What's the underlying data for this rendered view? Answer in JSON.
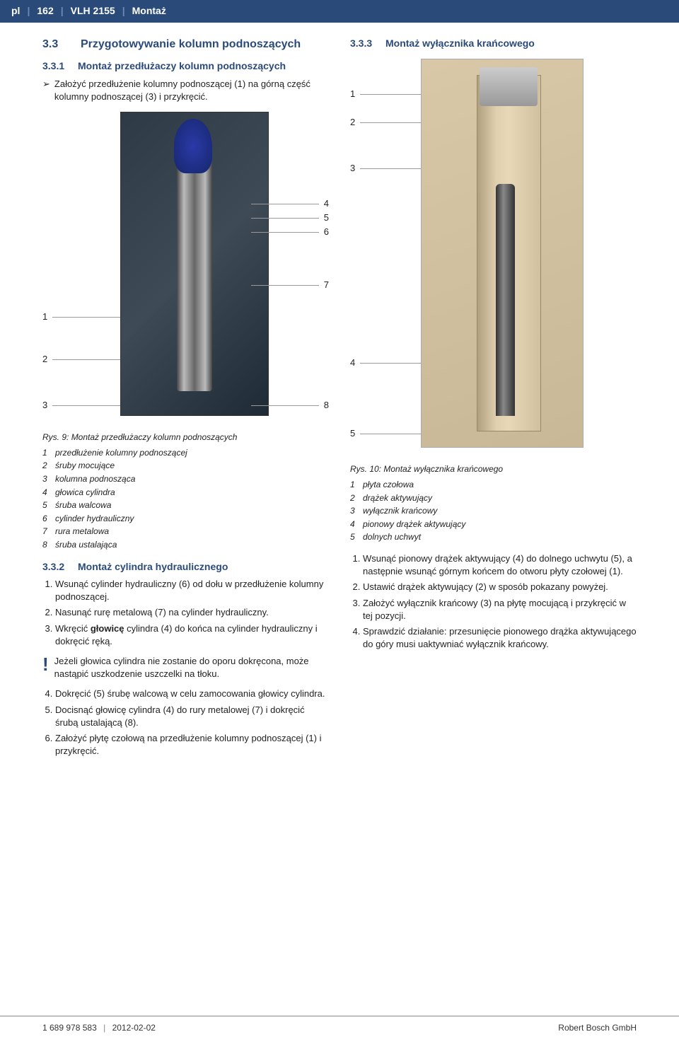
{
  "header": {
    "lang": "pl",
    "page": "162",
    "model": "VLH 2155",
    "section": "Montaż"
  },
  "left": {
    "section_num": "3.3",
    "section_title": "Przygotowywanie kolumn podnoszących",
    "sub1_num": "3.3.1",
    "sub1_title": "Montaż przedłużaczy kolumn podnoszących",
    "sub1_bullet": "Założyć przedłużenie kolumny podnoszącej (1) na górną część kolumny podnoszącej (3) i przykręcić.",
    "fig9": {
      "callouts_left": [
        "1",
        "2",
        "3"
      ],
      "callouts_right": [
        "4",
        "5",
        "6",
        "7",
        "8"
      ],
      "caption_label": "Rys. 9:",
      "caption_text": "Montaż przedłużaczy kolumn podnoszących",
      "legend": [
        {
          "n": "1",
          "t": "przedłużenie kolumny podnoszącej"
        },
        {
          "n": "2",
          "t": "śruby mocujące"
        },
        {
          "n": "3",
          "t": "kolumna podnosząca"
        },
        {
          "n": "4",
          "t": "głowica cylindra"
        },
        {
          "n": "5",
          "t": "śruba walcowa"
        },
        {
          "n": "6",
          "t": "cylinder hydrauliczny"
        },
        {
          "n": "7",
          "t": "rura metalowa"
        },
        {
          "n": "8",
          "t": "śruba ustalająca"
        }
      ]
    },
    "sub2_num": "3.3.2",
    "sub2_title": "Montaż cylindra hydraulicznego",
    "steps_a": [
      "Wsunąć cylinder hydrauliczny (6) od dołu w przedłużenie kolumny podnoszącej.",
      "Nasunąć rurę metalową (7) na cylinder hydrauliczny.",
      "Wkręcić głowicę cylindra (4) do końca na cylinder hydrauliczny i dokręcić ręką."
    ],
    "steps_a_bold_word": "głowicę",
    "warn": "Jeżeli głowica cylindra nie zostanie do oporu dokręcona, może nastąpić uszkodzenie uszczelki na tłoku.",
    "steps_b": [
      "Dokręcić (5) śrubę walcową w celu zamocowania głowicy cylindra.",
      "Docisnąć głowicę cylindra (4) do rury metalowej (7) i dokręcić śrubą ustalającą (8).",
      "Założyć płytę czołową na przedłużenie kolumny podnoszącej (1) i przykręcić."
    ],
    "steps_b_start": 4
  },
  "right": {
    "sub3_num": "3.3.3",
    "sub3_title": "Montaż wyłącznika krańcowego",
    "fig10": {
      "callouts_left": [
        "1",
        "2",
        "3",
        "4",
        "5"
      ],
      "caption_label": "Rys. 10:",
      "caption_text": "Montaż wyłącznika krańcowego",
      "legend": [
        {
          "n": "1",
          "t": "płyta czołowa"
        },
        {
          "n": "2",
          "t": "drążek aktywujący"
        },
        {
          "n": "3",
          "t": "wyłącznik krańcowy"
        },
        {
          "n": "4",
          "t": "pionowy drążek aktywujący"
        },
        {
          "n": "5",
          "t": "dolnych uchwyt"
        }
      ]
    },
    "steps": [
      "Wsunąć pionowy drążek aktywujący (4) do dolnego uchwytu (5), a następnie wsunąć górnym końcem do otworu płyty czołowej (1).",
      "Ustawić drążek aktywujący (2) w sposób pokazany powyżej.",
      "Założyć wyłącznik krańcowy (3) na płytę mocującą i przykręcić w tej pozycji.",
      "Sprawdzić działanie: przesunięcie pionowego drążka aktywującego do góry musi uaktywniać wyłącznik krańcowy."
    ]
  },
  "footer": {
    "docnum": "1 689 978 583",
    "date": "2012-02-02",
    "company": "Robert Bosch GmbH"
  },
  "colors": {
    "brand": "#2a4a7a",
    "header_bg": "#2a4a7a",
    "text": "#222222"
  }
}
